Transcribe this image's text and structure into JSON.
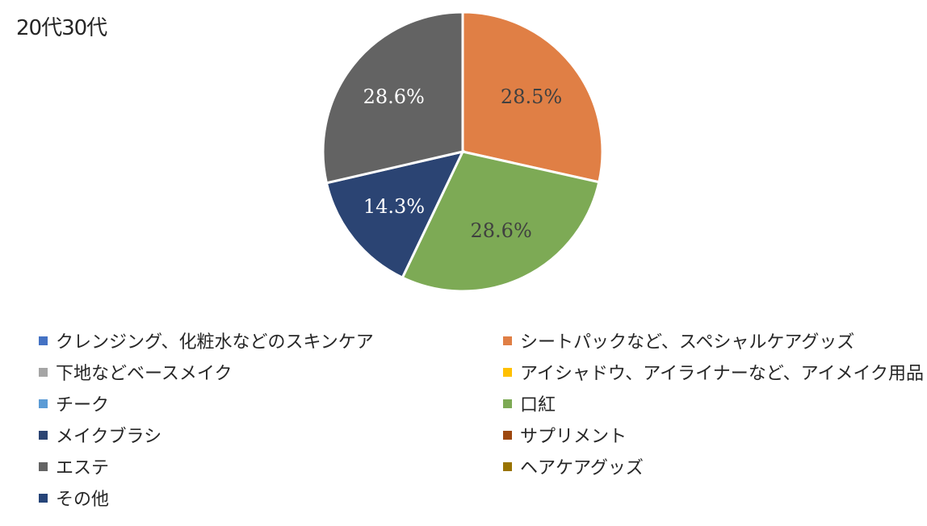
{
  "chart_data": {
    "type": "pie",
    "title": "20代30代",
    "legend_position": "bottom",
    "categories": [
      "クレンジング、化粧水などのスキンケア",
      "シートパックなど、スペシャルケアグッズ",
      "下地などベースメイク",
      "アイシャドウ、アイライナーなど、アイメイク用品",
      "チーク",
      "口紅",
      "メイクブラシ",
      "サプリメント",
      "エステ",
      "ヘアケアグッズ",
      "その他"
    ],
    "values": [
      0,
      28.5,
      0,
      0,
      0,
      28.6,
      14.3,
      0,
      28.6,
      0,
      0
    ],
    "labels": [
      "",
      "28.5%",
      "",
      "",
      "",
      "28.6%",
      "14.3%",
      "",
      "28.6%",
      "",
      ""
    ],
    "colors": [
      "#4472C4",
      "#E07F45",
      "#A5A5A5",
      "#FFC000",
      "#5B9BD5",
      "#7DAA55",
      "#2B4473",
      "#9E480E",
      "#636363",
      "#997300",
      "#264478"
    ],
    "label_colors": [
      "#404040",
      "#404040",
      "#404040",
      "#404040",
      "#404040",
      "#404040",
      "#ffffff",
      "#404040",
      "#ffffff",
      "#404040",
      "#404040"
    ],
    "start_angle_deg": 0,
    "direction": "clockwise"
  }
}
